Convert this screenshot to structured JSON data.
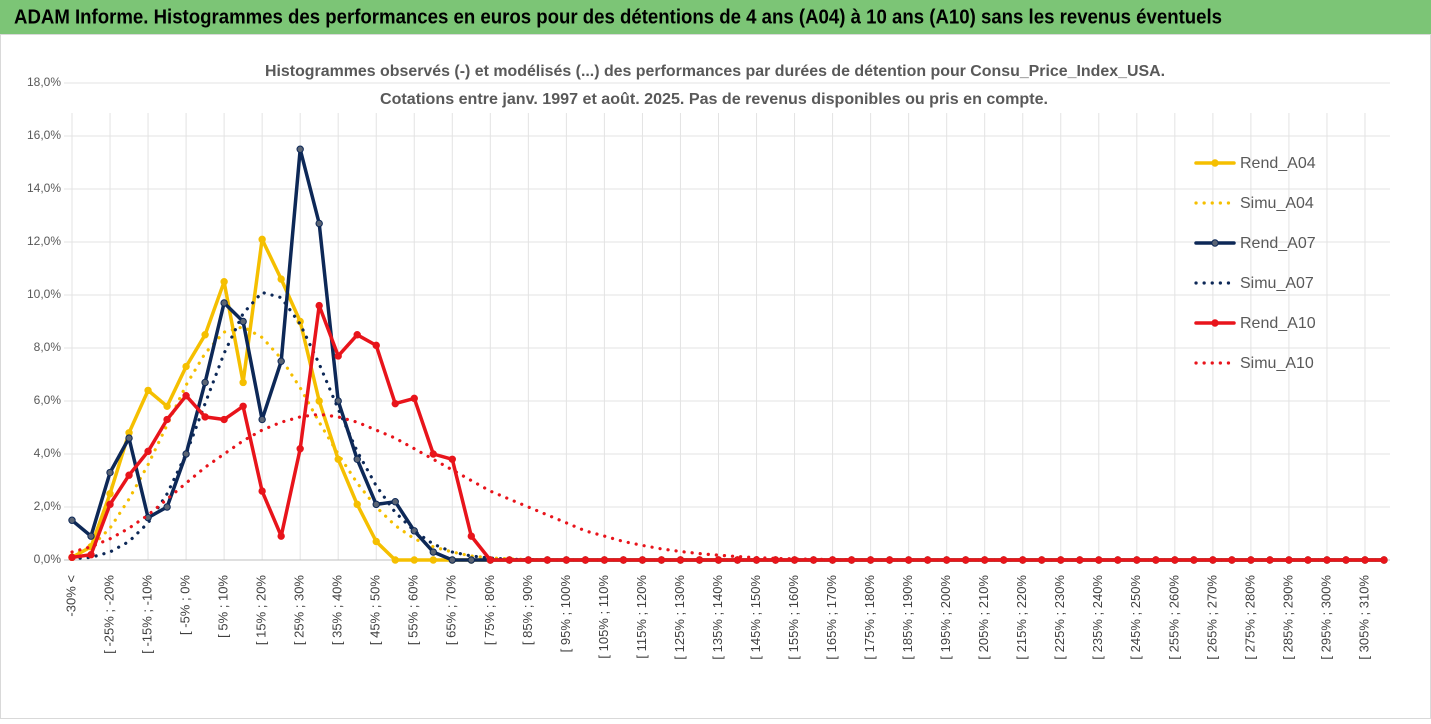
{
  "header": "ADAM Informe. Histogrammes des performances en euros pour des détentions de 4 ans (A04) à 10 ans (A10) sans les revenus éventuels",
  "chart_data": {
    "type": "line",
    "title": [
      "Histogrammes observés (-) et modélisés (...) des performances par durées de détention pour Consu_Price_Index_USA.",
      "Cotations entre janv. 1997 et août. 2025. Pas de revenus disponibles ou pris en compte."
    ],
    "categories": [
      "-30% <",
      null,
      "[ -25% ; -20%",
      null,
      "[ -15% ; -10%",
      null,
      "[ -5% ; 0%",
      null,
      "[ 5% ; 10%",
      null,
      "[ 15% ; 20%",
      null,
      "[ 25% ; 30%",
      null,
      "[ 35% ; 40%",
      null,
      "[ 45% ; 50%",
      null,
      "[ 55% ; 60%",
      null,
      "[ 65% ; 70%",
      null,
      "[ 75% ; 80%",
      null,
      "[ 85% ; 90%",
      null,
      "[ 95% ; 100%",
      null,
      "[ 105% ; 110%",
      null,
      "[ 115% ; 120%",
      null,
      "[ 125% ; 130%",
      null,
      "[ 135% ; 140%",
      null,
      "[ 145% ; 150%",
      null,
      "[ 155% ; 160%",
      null,
      "[ 165% ; 170%",
      null,
      "[ 175% ; 180%",
      null,
      "[ 185% ; 190%",
      null,
      "[ 195% ; 200%",
      null,
      "[ 205% ; 210%",
      null,
      "[ 215% ; 220%",
      null,
      "[ 225% ; 230%",
      null,
      "[ 235% ; 240%",
      null,
      "[ 245% ; 250%",
      null,
      "[ 255% ; 260%",
      null,
      "[ 265% ; 270%",
      null,
      "[ 275% ; 280%",
      null,
      "[ 285% ; 290%",
      null,
      "[ 295% ; 300%",
      null,
      "[ 305% ; 310%",
      null
    ],
    "series": [
      {
        "name": "Rend_A04",
        "color": "#f5bf00",
        "style": "solid",
        "markers": true,
        "values": [
          0.1,
          0.5,
          2.5,
          4.8,
          6.4,
          5.8,
          7.3,
          8.5,
          10.5,
          6.7,
          12.1,
          10.6,
          9.0,
          6.0,
          3.8,
          2.1,
          0.7,
          0,
          0,
          0,
          0,
          0,
          0,
          0,
          0,
          0,
          0,
          0,
          0,
          0,
          0,
          0,
          0,
          0,
          0,
          0,
          0,
          0,
          0,
          0,
          0,
          0,
          0,
          0,
          0,
          0,
          0,
          0,
          0,
          0,
          0,
          0,
          0,
          0,
          0,
          0,
          0,
          0,
          0,
          0,
          0,
          0,
          0,
          0,
          0,
          0,
          0,
          0,
          0,
          0
        ]
      },
      {
        "name": "Simu_A04",
        "color": "#f5bf00",
        "style": "dotted",
        "markers": false,
        "values": [
          0.2,
          0.5,
          1.2,
          2.3,
          3.6,
          5.1,
          6.6,
          7.8,
          8.6,
          8.8,
          8.4,
          7.6,
          6.5,
          5.2,
          4.0,
          2.9,
          2.0,
          1.3,
          0.8,
          0.5,
          0.3,
          0.15,
          0.08,
          0.04,
          0.02,
          0.01,
          0,
          0,
          0,
          0,
          0,
          0,
          0,
          0,
          0,
          0,
          0,
          0,
          0,
          0,
          0,
          0,
          0,
          0,
          0,
          0,
          0,
          0,
          0,
          0,
          0,
          0,
          0,
          0,
          0,
          0,
          0,
          0,
          0,
          0,
          0,
          0,
          0,
          0,
          0,
          0,
          0,
          0,
          0,
          0
        ]
      },
      {
        "name": "Rend_A07",
        "color": "#0d2857",
        "style": "solid",
        "markers": true,
        "values": [
          1.5,
          0.9,
          3.3,
          4.6,
          1.6,
          2.0,
          4.0,
          6.7,
          9.7,
          9.0,
          5.3,
          7.5,
          15.5,
          12.7,
          6.0,
          3.8,
          2.1,
          2.2,
          1.1,
          0.3,
          0,
          0,
          0,
          0,
          0,
          0,
          0,
          0,
          0,
          0,
          0,
          0,
          0,
          0,
          0,
          0,
          0,
          0,
          0,
          0,
          0,
          0,
          0,
          0,
          0,
          0,
          0,
          0,
          0,
          0,
          0,
          0,
          0,
          0,
          0,
          0,
          0,
          0,
          0,
          0,
          0,
          0,
          0,
          0,
          0,
          0,
          0,
          0,
          0,
          0
        ]
      },
      {
        "name": "Simu_A07",
        "color": "#0d2857",
        "style": "dotted",
        "markers": false,
        "values": [
          0.05,
          0.1,
          0.3,
          0.7,
          1.4,
          2.5,
          4.0,
          5.9,
          7.8,
          9.3,
          10.1,
          9.9,
          8.9,
          7.4,
          5.7,
          4.1,
          2.8,
          1.8,
          1.1,
          0.6,
          0.3,
          0.15,
          0.07,
          0.03,
          0.01,
          0,
          0,
          0,
          0,
          0,
          0,
          0,
          0,
          0,
          0,
          0,
          0,
          0,
          0,
          0,
          0,
          0,
          0,
          0,
          0,
          0,
          0,
          0,
          0,
          0,
          0,
          0,
          0,
          0,
          0,
          0,
          0,
          0,
          0,
          0,
          0,
          0,
          0,
          0,
          0,
          0,
          0,
          0,
          0,
          0
        ]
      },
      {
        "name": "Rend_A10",
        "color": "#e8141b",
        "style": "solid",
        "markers": true,
        "values": [
          0.1,
          0.2,
          2.1,
          3.2,
          4.1,
          5.3,
          6.2,
          5.4,
          5.3,
          5.8,
          2.6,
          0.9,
          4.2,
          9.6,
          7.7,
          8.5,
          8.1,
          5.9,
          6.1,
          4.0,
          3.8,
          0.9,
          0,
          0,
          0,
          0,
          0,
          0,
          0,
          0,
          0,
          0,
          0,
          0,
          0,
          0,
          0,
          0,
          0,
          0,
          0,
          0,
          0,
          0,
          0,
          0,
          0,
          0,
          0,
          0,
          0,
          0,
          0,
          0,
          0,
          0,
          0,
          0,
          0,
          0,
          0,
          0,
          0,
          0,
          0,
          0,
          0,
          0,
          0,
          0
        ]
      },
      {
        "name": "Simu_A10",
        "color": "#e8141b",
        "style": "dotted",
        "markers": false,
        "values": [
          0.3,
          0.5,
          0.8,
          1.2,
          1.7,
          2.3,
          2.9,
          3.5,
          4.0,
          4.5,
          4.9,
          5.2,
          5.4,
          5.5,
          5.4,
          5.2,
          4.9,
          4.6,
          4.2,
          3.8,
          3.4,
          3.0,
          2.6,
          2.3,
          2.0,
          1.7,
          1.4,
          1.1,
          0.9,
          0.7,
          0.55,
          0.42,
          0.32,
          0.24,
          0.18,
          0.13,
          0.09,
          0.06,
          0.04,
          0.03,
          0.02,
          0.01,
          0,
          0,
          0,
          0,
          0,
          0,
          0,
          0,
          0,
          0,
          0,
          0,
          0,
          0,
          0,
          0,
          0,
          0,
          0,
          0,
          0,
          0,
          0,
          0,
          0,
          0,
          0,
          0
        ]
      }
    ],
    "ylim": [
      0,
      18
    ],
    "yticks": [
      {
        "value": 0,
        "label": "0,0%"
      },
      {
        "value": 2,
        "label": "2,0%"
      },
      {
        "value": 4,
        "label": "4,0%"
      },
      {
        "value": 6,
        "label": "6,0%"
      },
      {
        "value": 8,
        "label": "8,0%"
      },
      {
        "value": 10,
        "label": "10,0%"
      },
      {
        "value": 12,
        "label": "12,0%"
      },
      {
        "value": 14,
        "label": "14,0%"
      },
      {
        "value": 16,
        "label": "16,0%"
      },
      {
        "value": 18,
        "label": "18,0%"
      }
    ],
    "grid": true,
    "legend": "right"
  }
}
